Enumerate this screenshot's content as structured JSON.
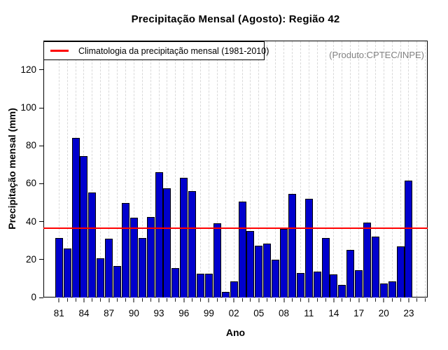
{
  "title": "Precipitação Mensal (Agosto): Região 42",
  "annotations": {
    "product": "(Produto:CPTEC/INPE)"
  },
  "legend": {
    "label": "Climatologia da precipitação mensal (1981-2010)",
    "line_color": "#ff0000",
    "position": "top-left"
  },
  "axes": {
    "xlabel": "Ano",
    "ylabel": "Precipitação mensal (mm)"
  },
  "colors": {
    "bar_fill": "#0000CD",
    "bar_border": "#000000",
    "reference_line": "#ff0000",
    "grid": "#d9d9d9",
    "product_text": "#828282"
  },
  "chart_data": {
    "type": "bar",
    "title": "Precipitação Mensal (Agosto): Região 42",
    "xlabel": "Ano",
    "ylabel": "Precipitação mensal (mm)",
    "ylim": [
      0,
      135
    ],
    "yticks": [
      0,
      20,
      40,
      60,
      80,
      100,
      120
    ],
    "grid": {
      "vertical_dashed_per_year": true,
      "horizontal": false
    },
    "legend_position": "top-left",
    "categories": [
      "1981",
      "1982",
      "1983",
      "1984",
      "1985",
      "1986",
      "1987",
      "1988",
      "1989",
      "1990",
      "1991",
      "1992",
      "1993",
      "1994",
      "1995",
      "1996",
      "1997",
      "1998",
      "1999",
      "2000",
      "2001",
      "2002",
      "2003",
      "2004",
      "2005",
      "2006",
      "2007",
      "2008",
      "2009",
      "2010",
      "2011",
      "2012",
      "2013",
      "2014",
      "2015",
      "2016",
      "2017",
      "2018",
      "2019",
      "2020",
      "2021",
      "2022",
      "2023"
    ],
    "values": [
      31.5,
      26,
      84,
      74.5,
      55.5,
      20.5,
      31,
      16.5,
      50,
      42,
      31.5,
      42.5,
      66,
      57.5,
      15.5,
      63,
      56,
      12.5,
      12.5,
      39,
      3,
      8.5,
      50.5,
      35,
      27.5,
      28.5,
      20,
      36,
      54.5,
      13,
      52,
      13.5,
      31.5,
      12,
      6.5,
      25,
      14.5,
      39.5,
      32,
      7.5,
      8.5,
      27,
      61.5
    ],
    "xtick_labels": [
      "81",
      "84",
      "87",
      "90",
      "93",
      "96",
      "99",
      "02",
      "05",
      "08",
      "11",
      "14",
      "17",
      "20",
      "23"
    ],
    "xtick_label_step": 3,
    "reference_line": {
      "label": "Climatologia da precipitação mensal (1981-2010)",
      "value": 36.7,
      "color": "#ff0000"
    }
  }
}
